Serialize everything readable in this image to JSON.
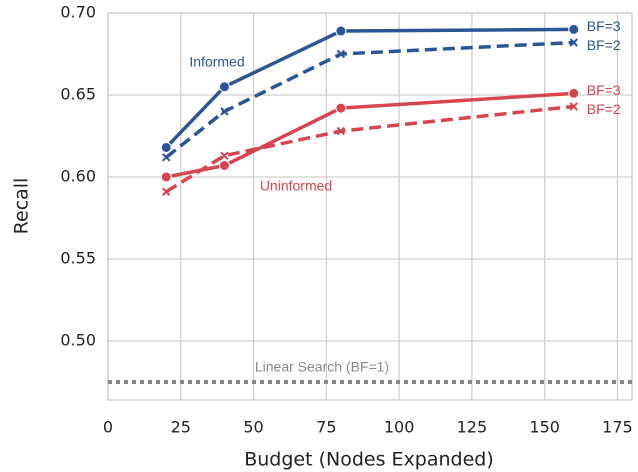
{
  "chart_data": {
    "type": "line",
    "xlabel": "Budget (Nodes Expanded)",
    "ylabel": "Recall",
    "x": [
      20,
      40,
      80,
      160
    ],
    "series": [
      {
        "name": "BF=3",
        "group": "Informed",
        "color": "#2c5596",
        "dash": false,
        "marker": "circle",
        "values": [
          0.618,
          0.655,
          0.689,
          0.69
        ]
      },
      {
        "name": "BF=2",
        "group": "Informed",
        "color": "#2c5596",
        "dash": true,
        "marker": "x",
        "values": [
          0.612,
          0.64,
          0.675,
          0.682
        ]
      },
      {
        "name": "BF=3",
        "group": "Uninformed",
        "color": "#d64550",
        "dash": false,
        "marker": "circle",
        "values": [
          0.6,
          0.607,
          0.642,
          0.651
        ]
      },
      {
        "name": "BF=2",
        "group": "Uninformed",
        "color": "#d64550",
        "dash": true,
        "marker": "x",
        "values": [
          0.591,
          0.613,
          0.628,
          0.643
        ]
      }
    ],
    "annotations": [
      "Informed",
      "Uninformed"
    ],
    "reference_line": {
      "label": "Linear Search (BF=1)",
      "value": 0.475,
      "color": "#888888"
    },
    "xlim": [
      0,
      180
    ],
    "ylim": [
      0.464,
      0.7
    ],
    "xticks": [
      0,
      25,
      50,
      75,
      100,
      125,
      150,
      175
    ],
    "yticks": [
      {
        "value": 0.5,
        "label": "0.50"
      },
      {
        "value": 0.55,
        "label": "0.55"
      },
      {
        "value": 0.6,
        "label": "0.60"
      },
      {
        "value": 0.65,
        "label": "0.65"
      },
      {
        "value": 0.7,
        "label": "0.70"
      }
    ],
    "grid": true
  }
}
